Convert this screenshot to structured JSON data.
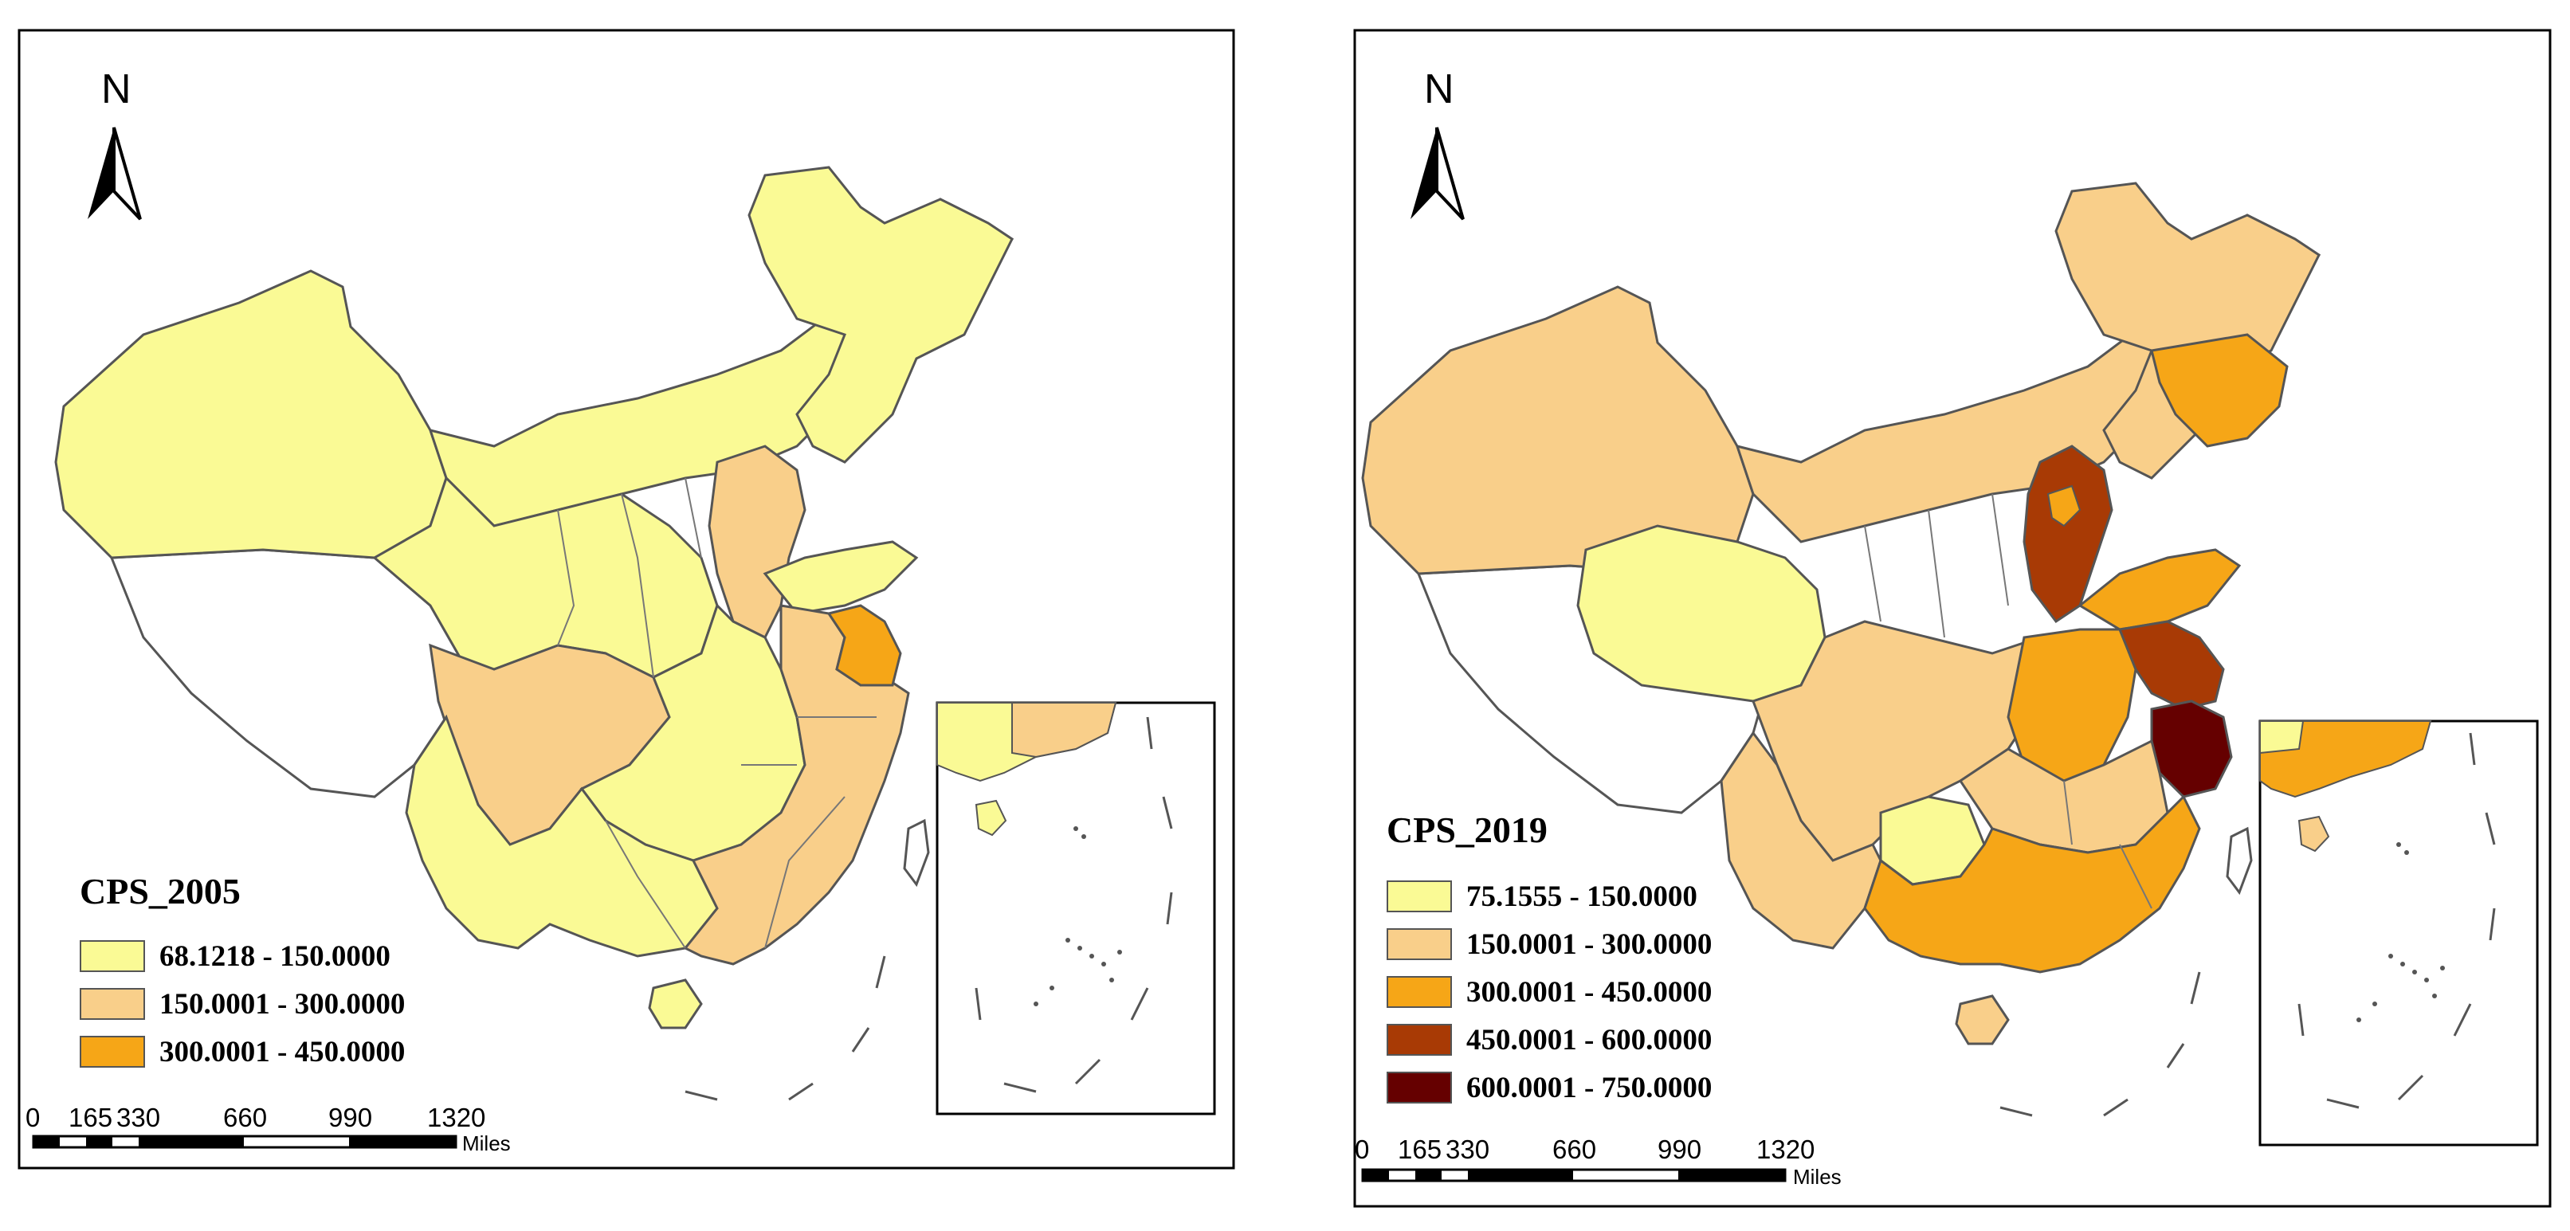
{
  "maps": [
    {
      "title": "CPS_2005",
      "north_label": "N",
      "legend": [
        {
          "label": "68.1218 - 150.0000",
          "color": "#FAFA95"
        },
        {
          "label": "150.0001 - 300.0000",
          "color": "#F9CF8A"
        },
        {
          "label": "300.0001 - 450.0000",
          "color": "#F6A617"
        }
      ],
      "scale": {
        "ticks": [
          "0",
          "165",
          "330",
          "660",
          "990",
          "1320"
        ],
        "unit": "Miles"
      },
      "no_data_color": "#FFFFFF"
    },
    {
      "title": "CPS_2019",
      "north_label": "N",
      "legend": [
        {
          "label": "75.1555 - 150.0000",
          "color": "#FAFA95"
        },
        {
          "label": "150.0001 - 300.0000",
          "color": "#F9CF8A"
        },
        {
          "label": "300.0001 - 450.0000",
          "color": "#F6A617"
        },
        {
          "label": "450.0001 - 600.0000",
          "color": "#A83A05"
        },
        {
          "label": "600.0001 - 750.0000",
          "color": "#650000"
        }
      ],
      "scale": {
        "ticks": [
          "0",
          "165",
          "330",
          "660",
          "990",
          "1320"
        ],
        "unit": "Miles"
      },
      "no_data_color": "#FFFFFF"
    }
  ]
}
